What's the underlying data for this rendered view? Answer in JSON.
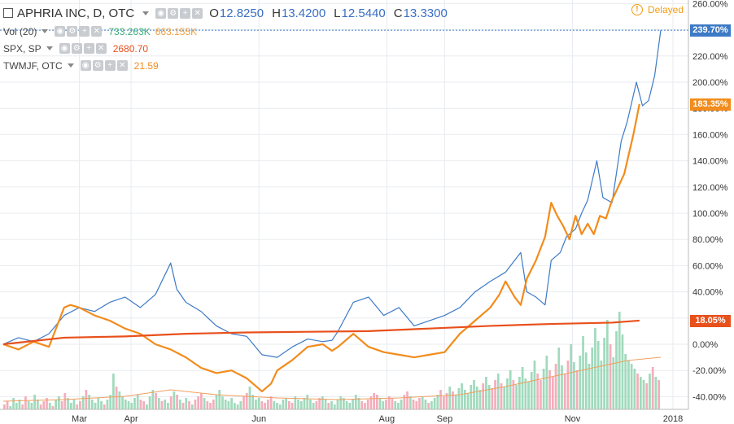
{
  "header": {
    "symbol_title": "APHRIA INC, D, OTC",
    "ohlc": [
      {
        "key": "O",
        "value": "12.8250"
      },
      {
        "key": "H",
        "value": "13.4200"
      },
      {
        "key": "L",
        "value": "12.5440"
      },
      {
        "key": "C",
        "value": "13.3300"
      }
    ],
    "delayed_label": "Delayed"
  },
  "legend": {
    "vol": {
      "label": "Vol (20)",
      "value1": "733.263K",
      "value2": "663.155K"
    },
    "spx": {
      "label": "SPX, SP",
      "value": "2680.70"
    },
    "twmjf": {
      "label": "TWMJF, OTC",
      "value": "21.59"
    }
  },
  "colors": {
    "main_line": "#3d7ac6",
    "spx": "#e8501c",
    "twmjf": "#f28c1c",
    "vol_up": "#8fd4b0",
    "vol_down": "#f2a0b0",
    "vol_ma": "#f0a060",
    "grid": "#e8ebef"
  },
  "tags": {
    "main": "239.70%",
    "twmjf": "183.35%",
    "spx": "18.05%"
  },
  "chart_data": {
    "type": "line",
    "y_unit": "percent change",
    "ylim": [
      -48,
      262
    ],
    "y_ticks": [
      "260.00%",
      "240.00%",
      "220.00%",
      "200.00%",
      "180.00%",
      "160.00%",
      "140.00%",
      "120.00%",
      "100.00%",
      "80.00%",
      "60.00%",
      "40.00%",
      "20.00%",
      "0.00%",
      "-20.00%",
      "-40.00%"
    ],
    "y_tick_values": [
      260,
      240,
      220,
      200,
      180,
      160,
      140,
      120,
      100,
      80,
      60,
      40,
      20,
      0,
      -20,
      -40
    ],
    "xlim": [
      0,
      216
    ],
    "x_ticks": [
      {
        "label": "Mar",
        "x": 25
      },
      {
        "label": "Apr",
        "x": 42
      },
      {
        "label": "Jun",
        "x": 84
      },
      {
        "label": "Aug",
        "x": 126
      },
      {
        "label": "Sep",
        "x": 145
      },
      {
        "label": "Nov",
        "x": 187
      },
      {
        "label": "2018",
        "x": 220
      }
    ],
    "series": [
      {
        "name": "APHRIA INC",
        "points": [
          [
            0,
            0
          ],
          [
            5,
            5
          ],
          [
            10,
            2
          ],
          [
            15,
            8
          ],
          [
            20,
            22
          ],
          [
            25,
            28
          ],
          [
            30,
            25
          ],
          [
            35,
            32
          ],
          [
            40,
            36
          ],
          [
            45,
            28
          ],
          [
            50,
            38
          ],
          [
            55,
            62
          ],
          [
            57,
            42
          ],
          [
            60,
            32
          ],
          [
            65,
            25
          ],
          [
            70,
            14
          ],
          [
            75,
            8
          ],
          [
            80,
            6
          ],
          [
            85,
            -8
          ],
          [
            90,
            -10
          ],
          [
            95,
            -2
          ],
          [
            100,
            4
          ],
          [
            105,
            2
          ],
          [
            108,
            3
          ],
          [
            110,
            10
          ],
          [
            115,
            32
          ],
          [
            120,
            36
          ],
          [
            125,
            22
          ],
          [
            130,
            28
          ],
          [
            135,
            14
          ],
          [
            140,
            18
          ],
          [
            145,
            22
          ],
          [
            150,
            28
          ],
          [
            155,
            40
          ],
          [
            160,
            48
          ],
          [
            165,
            55
          ],
          [
            170,
            70
          ],
          [
            172,
            40
          ],
          [
            175,
            36
          ],
          [
            178,
            30
          ],
          [
            180,
            64
          ],
          [
            183,
            70
          ],
          [
            185,
            82
          ],
          [
            188,
            88
          ],
          [
            190,
            100
          ],
          [
            192,
            110
          ],
          [
            195,
            140
          ],
          [
            197,
            112
          ],
          [
            200,
            108
          ],
          [
            203,
            155
          ],
          [
            205,
            170
          ],
          [
            208,
            200
          ],
          [
            210,
            182
          ],
          [
            212,
            186
          ],
          [
            214,
            205
          ],
          [
            216,
            239.7
          ]
        ]
      },
      {
        "name": "TWMJF",
        "points": [
          [
            0,
            0
          ],
          [
            5,
            -4
          ],
          [
            10,
            2
          ],
          [
            15,
            -2
          ],
          [
            20,
            28
          ],
          [
            22,
            30
          ],
          [
            25,
            28
          ],
          [
            30,
            22
          ],
          [
            35,
            18
          ],
          [
            40,
            12
          ],
          [
            45,
            8
          ],
          [
            50,
            0
          ],
          [
            55,
            -4
          ],
          [
            60,
            -10
          ],
          [
            65,
            -18
          ],
          [
            70,
            -22
          ],
          [
            75,
            -20
          ],
          [
            80,
            -26
          ],
          [
            85,
            -36
          ],
          [
            88,
            -30
          ],
          [
            90,
            -20
          ],
          [
            95,
            -12
          ],
          [
            100,
            -2
          ],
          [
            105,
            0
          ],
          [
            108,
            -5
          ],
          [
            110,
            -2
          ],
          [
            115,
            8
          ],
          [
            120,
            -2
          ],
          [
            125,
            -6
          ],
          [
            130,
            -8
          ],
          [
            135,
            -10
          ],
          [
            140,
            -8
          ],
          [
            145,
            -6
          ],
          [
            150,
            8
          ],
          [
            155,
            18
          ],
          [
            160,
            28
          ],
          [
            163,
            38
          ],
          [
            165,
            48
          ],
          [
            168,
            36
          ],
          [
            170,
            30
          ],
          [
            172,
            50
          ],
          [
            175,
            64
          ],
          [
            178,
            82
          ],
          [
            180,
            108
          ],
          [
            182,
            98
          ],
          [
            184,
            90
          ],
          [
            186,
            80
          ],
          [
            188,
            98
          ],
          [
            190,
            84
          ],
          [
            192,
            92
          ],
          [
            194,
            84
          ],
          [
            196,
            98
          ],
          [
            198,
            96
          ],
          [
            200,
            110
          ],
          [
            202,
            120
          ],
          [
            204,
            130
          ],
          [
            207,
            160
          ],
          [
            209,
            183.35
          ]
        ]
      },
      {
        "name": "SPX",
        "points": [
          [
            0,
            0
          ],
          [
            20,
            5
          ],
          [
            40,
            6
          ],
          [
            60,
            8
          ],
          [
            80,
            9
          ],
          [
            100,
            9.5
          ],
          [
            120,
            10
          ],
          [
            140,
            12
          ],
          [
            160,
            14
          ],
          [
            180,
            15.5
          ],
          [
            200,
            16.5
          ],
          [
            209,
            18.05
          ]
        ]
      }
    ],
    "volume_bars": [
      3,
      5,
      2,
      7,
      4,
      6,
      3,
      8,
      5,
      4,
      9,
      6,
      3,
      5,
      7,
      4,
      2,
      6,
      8,
      5,
      10,
      7,
      4,
      6,
      3,
      5,
      8,
      12,
      9,
      6,
      4,
      7,
      5,
      3,
      6,
      9,
      22,
      14,
      11,
      8,
      6,
      5,
      4,
      7,
      9,
      6,
      5,
      3,
      8,
      12,
      10,
      7,
      5,
      6,
      4,
      8,
      11,
      9,
      6,
      4,
      7,
      5,
      3,
      6,
      8,
      10,
      7,
      5,
      4,
      6,
      9,
      12,
      8,
      6,
      5,
      7,
      4,
      3,
      5,
      8,
      10,
      14,
      9,
      6,
      7,
      5,
      4,
      6,
      8,
      5,
      4,
      3,
      6,
      7,
      5,
      4,
      8,
      6,
      5,
      7,
      9,
      6,
      4,
      5,
      7,
      8,
      6,
      4,
      5,
      3,
      6,
      8,
      7,
      5,
      4,
      6,
      9,
      7,
      5,
      4,
      6,
      8,
      10,
      9,
      7,
      5,
      6,
      8,
      7,
      5,
      4,
      6,
      9,
      11,
      8,
      6,
      5,
      7,
      8,
      6,
      4,
      5,
      7,
      9,
      12,
      8,
      10,
      14,
      11,
      9,
      13,
      16,
      12,
      10,
      15,
      18,
      14,
      12,
      16,
      20,
      15,
      13,
      18,
      22,
      16,
      14,
      19,
      24,
      18,
      15,
      20,
      26,
      19,
      17,
      23,
      30,
      22,
      18,
      25,
      33,
      24,
      20,
      28,
      38,
      27,
      22,
      30,
      40,
      29,
      24,
      33,
      45,
      35,
      28,
      38,
      50,
      42,
      30,
      44,
      55,
      40,
      32,
      48,
      60,
      46,
      34,
      30,
      28,
      25,
      22,
      20,
      18,
      16,
      22,
      26,
      20,
      18
    ],
    "vol_ma": [
      [
        0,
        5
      ],
      [
        20,
        6
      ],
      [
        40,
        8
      ],
      [
        55,
        12
      ],
      [
        70,
        9
      ],
      [
        90,
        7
      ],
      [
        110,
        6
      ],
      [
        130,
        7
      ],
      [
        150,
        9
      ],
      [
        165,
        14
      ],
      [
        180,
        20
      ],
      [
        195,
        26
      ],
      [
        205,
        30
      ],
      [
        216,
        32
      ]
    ]
  }
}
